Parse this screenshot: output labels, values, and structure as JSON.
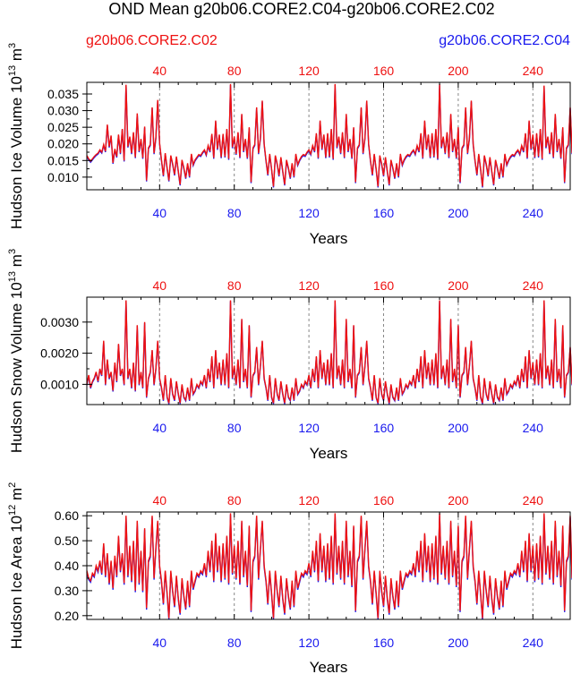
{
  "title": "OND Mean g20b06.CORE2.C04-g20b06.CORE2.C02",
  "legend": {
    "top_left": "g20b06.CORE2.C02",
    "top_right": "g20b06.CORE2.C04"
  },
  "colors": {
    "case_c02": "#ee1111",
    "case_c04": "#1a1aee",
    "axis": "#000000",
    "refline": "#888888"
  },
  "chart_data": [
    {
      "type": "line",
      "id": "ice-volume",
      "ylabel": "Hudson Ice Volume",
      "yunits": {
        "scale_base": "10",
        "scale_exp": "13",
        "unit": "m",
        "unit_exp": "3"
      },
      "xlabel": "Years",
      "xlim": [
        1,
        260
      ],
      "ylim": [
        0.0062,
        0.0385
      ],
      "yticks": [
        0.01,
        0.015,
        0.02,
        0.025,
        0.03,
        0.035
      ],
      "yticklabels": [
        "0.010",
        "0.015",
        "0.020",
        "0.025",
        "0.030",
        "0.035"
      ],
      "xticks_top": [
        "40",
        "80",
        "120",
        "160",
        "200",
        "240"
      ],
      "xticks_bottom": [
        "40",
        "80",
        "120",
        "160",
        "200",
        "240"
      ],
      "reference_lines_x": [
        40,
        80,
        120,
        160,
        200,
        240
      ],
      "series_note": "Two nearly identical OND-mean time series (C02 red, C04 blue), values estimated from figure",
      "series": [
        {
          "name": "g20b06.CORE2.C02",
          "values": [
            0.0165,
            0.0155,
            0.0148,
            0.0155,
            0.0162,
            0.0168,
            0.0172,
            0.0182,
            0.0175,
            0.0198,
            0.0178,
            0.0258,
            0.0192,
            0.0225,
            0.0143,
            0.0185,
            0.0162,
            0.0228,
            0.0172,
            0.0245,
            0.015,
            0.0378,
            0.0192,
            0.0222,
            0.0172,
            0.0235,
            0.016,
            0.0292,
            0.0178,
            0.0215,
            0.0158,
            0.0252,
            0.009,
            0.0188,
            0.0198,
            0.031,
            0.0172,
            0.0218,
            0.0332,
            0.0202,
            0.0152,
            0.0105,
            0.0172,
            0.0128,
            0.009,
            0.0165,
            0.014,
            0.0108,
            0.0162,
            0.0118,
            0.0078,
            0.0152,
            0.0128,
            0.0098,
            0.0142,
            0.0102,
            0.017,
            0.0138,
            0.0152,
            0.016,
            0.0168,
            0.0165,
            0.0175,
            0.0182,
            0.0168,
            0.0195,
            0.0178,
            0.023,
            0.0158,
            0.027,
            0.0185,
            0.0228,
            0.016,
            0.023,
            0.0162,
            0.0245,
            0.0155,
            0.038,
            0.019,
            0.0222,
            0.017,
            0.0235,
            0.016,
            0.029,
            0.0178,
            0.0215,
            0.0158,
            0.025,
            0.0085,
            0.0188,
            0.0198,
            0.031,
            0.0172,
            0.0218,
            0.033,
            0.02,
            0.015,
            0.0108,
            0.017,
            0.0125,
            0.0072,
            0.0165,
            0.014,
            0.0105,
            0.016,
            0.0118,
            0.0078,
            0.0152,
            0.0128,
            0.0098,
            0.0142,
            0.0102,
            0.017,
            0.0138,
            0.0152,
            0.0162,
            0.0168,
            0.0165,
            0.0175,
            0.0182,
            0.017,
            0.0195,
            0.0178,
            0.0232,
            0.0158,
            0.027,
            0.0185,
            0.0228,
            0.016,
            0.0232,
            0.0162,
            0.0245,
            0.0155,
            0.038,
            0.019,
            0.0222,
            0.0172,
            0.0235,
            0.016,
            0.029,
            0.0178,
            0.0215,
            0.0158,
            0.025,
            0.0085,
            0.0188,
            0.0198,
            0.031,
            0.0172,
            0.0218,
            0.033,
            0.02,
            0.015,
            0.0108,
            0.017,
            0.0125,
            0.0072,
            0.0165,
            0.014,
            0.0105,
            0.016,
            0.0118,
            0.0078,
            0.0152,
            0.0128,
            0.0098,
            0.0142,
            0.0102,
            0.017,
            0.0138,
            0.0152,
            0.0162,
            0.0168,
            0.0165,
            0.0175,
            0.0182,
            0.017,
            0.0195,
            0.0178,
            0.0232,
            0.0158,
            0.027,
            0.0185,
            0.0228,
            0.016,
            0.0232,
            0.0162,
            0.0245,
            0.0155,
            0.038,
            0.019,
            0.0222,
            0.0172,
            0.0235,
            0.016,
            0.029,
            0.0178,
            0.0215,
            0.0158,
            0.025,
            0.0085,
            0.0188,
            0.0198,
            0.031,
            0.0172,
            0.0218,
            0.033,
            0.02,
            0.015,
            0.0108,
            0.017,
            0.0125,
            0.0072,
            0.0165,
            0.014,
            0.0105,
            0.016,
            0.0118,
            0.0078,
            0.0152,
            0.0128,
            0.0098,
            0.0142,
            0.0102,
            0.017,
            0.0138,
            0.0152,
            0.0162,
            0.0168,
            0.0165,
            0.0175,
            0.0182,
            0.017,
            0.0195,
            0.0178,
            0.0232,
            0.0158,
            0.027,
            0.0185,
            0.0228,
            0.016,
            0.0232,
            0.0162,
            0.0245,
            0.0155,
            0.0375,
            0.019,
            0.0222,
            0.0172,
            0.0235,
            0.016,
            0.029,
            0.0178,
            0.0215,
            0.0158,
            0.025,
            0.0085,
            0.0188,
            0.0198,
            0.031,
            0.0172,
            0.0218,
            0.0195,
            0.0148,
            0.0178,
            0.012,
            0.019,
            0.016
          ]
        },
        {
          "name": "g20b06.CORE2.C04",
          "offset_from_c02": -0.0003
        }
      ]
    },
    {
      "type": "line",
      "id": "snow-volume",
      "ylabel": "Hudson Snow Volume",
      "yunits": {
        "scale_base": "10",
        "scale_exp": "13",
        "unit": "m",
        "unit_exp": "3"
      },
      "xlabel": "Years",
      "xlim": [
        1,
        260
      ],
      "ylim": [
        0.00035,
        0.0038
      ],
      "yticks": [
        0.001,
        0.002,
        0.003
      ],
      "yticklabels": [
        "0.0010",
        "0.0020",
        "0.0030"
      ],
      "xticks_top": [
        "40",
        "80",
        "120",
        "160",
        "200",
        "240"
      ],
      "xticks_bottom": [
        "40",
        "80",
        "120",
        "160",
        "200",
        "240"
      ],
      "reference_lines_x": [
        40,
        80,
        120,
        160,
        200,
        240
      ],
      "series": [
        {
          "name": "g20b06.CORE2.C02",
          "values": [
            0.001,
            0.0013,
            0.0009,
            0.0011,
            0.0012,
            0.0014,
            0.0011,
            0.0015,
            0.0013,
            0.0024,
            0.001,
            0.0018,
            0.0012,
            0.0014,
            0.0008,
            0.0017,
            0.0011,
            0.0023,
            0.0013,
            0.0015,
            0.001,
            0.0037,
            0.0012,
            0.0015,
            0.0009,
            0.0017,
            0.0008,
            0.0029,
            0.001,
            0.0014,
            0.0009,
            0.003,
            0.0006,
            0.0012,
            0.0014,
            0.0021,
            0.001,
            0.0015,
            0.0024,
            0.0012,
            0.0009,
            0.0005,
            0.0013,
            0.0006,
            0.0004,
            0.0012,
            0.0007,
            0.0005,
            0.0011,
            0.0007,
            0.0004,
            0.001,
            0.0006,
            0.0005,
            0.0009,
            0.0005,
            0.0012,
            0.0007,
            0.0008,
            0.001,
            0.0009,
            0.0011,
            0.001,
            0.0013,
            0.0009,
            0.0015,
            0.0011,
            0.0019,
            0.0009,
            0.0021,
            0.0012,
            0.0017,
            0.001,
            0.0018,
            0.001,
            0.002,
            0.0009,
            0.0037,
            0.0012,
            0.0016,
            0.001,
            0.0018,
            0.0009,
            0.0031,
            0.0011,
            0.0015,
            0.0009,
            0.0029,
            0.0006,
            0.0013,
            0.0014,
            0.0022,
            0.001,
            0.0016,
            0.0024,
            0.0012,
            0.0009,
            0.0005,
            0.0013,
            0.0006,
            0.0004,
            0.0012,
            0.0007,
            0.0005,
            0.0011,
            0.0007,
            0.0004,
            0.001,
            0.0006,
            0.0005,
            0.0009,
            0.0005,
            0.0012,
            0.0007,
            0.0008,
            0.001,
            0.0009,
            0.0011,
            0.001,
            0.0013,
            0.0009,
            0.0015,
            0.0011,
            0.0019,
            0.0009,
            0.0021,
            0.0012,
            0.0017,
            0.001,
            0.0018,
            0.001,
            0.002,
            0.0009,
            0.0037,
            0.0012,
            0.0016,
            0.001,
            0.0018,
            0.0009,
            0.0031,
            0.0011,
            0.0015,
            0.0009,
            0.0029,
            0.0006,
            0.0013,
            0.0014,
            0.0022,
            0.001,
            0.0016,
            0.0024,
            0.0012,
            0.0009,
            0.0005,
            0.0013,
            0.0006,
            0.0004,
            0.0012,
            0.0007,
            0.0005,
            0.0011,
            0.0007,
            0.0004,
            0.001,
            0.0006,
            0.0005,
            0.0009,
            0.0005,
            0.0012,
            0.0007,
            0.0008,
            0.001,
            0.0009,
            0.0011,
            0.001,
            0.0013,
            0.0009,
            0.0015,
            0.0011,
            0.0019,
            0.0009,
            0.0021,
            0.0012,
            0.0017,
            0.001,
            0.0018,
            0.001,
            0.002,
            0.0009,
            0.0037,
            0.0012,
            0.0016,
            0.001,
            0.0018,
            0.0009,
            0.0031,
            0.0011,
            0.0015,
            0.0009,
            0.0029,
            0.0006,
            0.0013,
            0.0014,
            0.0022,
            0.001,
            0.0016,
            0.0024,
            0.0012,
            0.0009,
            0.0005,
            0.0013,
            0.0006,
            0.0004,
            0.0012,
            0.0007,
            0.0005,
            0.0011,
            0.0007,
            0.0004,
            0.001,
            0.0006,
            0.0005,
            0.0009,
            0.0005,
            0.0012,
            0.0007,
            0.0008,
            0.001,
            0.0009,
            0.0011,
            0.001,
            0.0013,
            0.0009,
            0.0015,
            0.0011,
            0.0019,
            0.0009,
            0.0021,
            0.0012,
            0.0017,
            0.001,
            0.0018,
            0.001,
            0.002,
            0.0009,
            0.0037,
            0.0012,
            0.0016,
            0.001,
            0.0018,
            0.0009,
            0.0031,
            0.0011,
            0.0015,
            0.0009,
            0.0029,
            0.0006,
            0.0013,
            0.0014,
            0.0022,
            0.001,
            0.0016,
            0.0012,
            0.0007,
            0.0009,
            0.0005,
            0.0008,
            0.0005
          ]
        },
        {
          "name": "g20b06.CORE2.C04",
          "offset_from_c02": -3e-05
        }
      ]
    },
    {
      "type": "line",
      "id": "ice-area",
      "ylabel": "Hudson Ice Area",
      "yunits": {
        "scale_base": "10",
        "scale_exp": "12",
        "unit": "m",
        "unit_exp": "2"
      },
      "xlabel": "Years",
      "xlim": [
        1,
        260
      ],
      "ylim": [
        0.185,
        0.615
      ],
      "yticks": [
        0.2,
        0.3,
        0.4,
        0.5,
        0.6
      ],
      "yticklabels": [
        "0.20",
        "0.30",
        "0.40",
        "0.50",
        "0.60"
      ],
      "xticks_top": [
        "40",
        "80",
        "120",
        "160",
        "200",
        "240"
      ],
      "xticks_bottom": [
        "40",
        "80",
        "120",
        "160",
        "200",
        "240"
      ],
      "reference_lines_x": [
        40,
        80,
        120,
        160,
        200,
        240
      ],
      "series": [
        {
          "name": "g20b06.CORE2.C02",
          "values": [
            0.38,
            0.35,
            0.34,
            0.37,
            0.36,
            0.4,
            0.38,
            0.42,
            0.37,
            0.49,
            0.36,
            0.45,
            0.33,
            0.42,
            0.31,
            0.44,
            0.36,
            0.52,
            0.38,
            0.45,
            0.33,
            0.6,
            0.36,
            0.48,
            0.34,
            0.5,
            0.3,
            0.58,
            0.33,
            0.46,
            0.3,
            0.55,
            0.23,
            0.42,
            0.44,
            0.6,
            0.35,
            0.47,
            0.58,
            0.4,
            0.34,
            0.25,
            0.38,
            0.29,
            0.19,
            0.38,
            0.3,
            0.24,
            0.36,
            0.27,
            0.21,
            0.35,
            0.28,
            0.23,
            0.34,
            0.24,
            0.38,
            0.31,
            0.34,
            0.37,
            0.36,
            0.38,
            0.37,
            0.41,
            0.36,
            0.46,
            0.38,
            0.5,
            0.34,
            0.53,
            0.38,
            0.48,
            0.34,
            0.49,
            0.35,
            0.52,
            0.33,
            0.61,
            0.37,
            0.48,
            0.35,
            0.5,
            0.33,
            0.58,
            0.36,
            0.46,
            0.32,
            0.56,
            0.22,
            0.42,
            0.44,
            0.6,
            0.35,
            0.47,
            0.58,
            0.4,
            0.34,
            0.25,
            0.38,
            0.29,
            0.19,
            0.38,
            0.3,
            0.24,
            0.36,
            0.27,
            0.21,
            0.35,
            0.28,
            0.23,
            0.34,
            0.24,
            0.38,
            0.31,
            0.34,
            0.37,
            0.36,
            0.38,
            0.37,
            0.41,
            0.36,
            0.46,
            0.38,
            0.5,
            0.34,
            0.53,
            0.38,
            0.48,
            0.34,
            0.49,
            0.35,
            0.52,
            0.33,
            0.61,
            0.37,
            0.48,
            0.35,
            0.5,
            0.33,
            0.58,
            0.36,
            0.46,
            0.32,
            0.56,
            0.22,
            0.42,
            0.44,
            0.6,
            0.35,
            0.47,
            0.58,
            0.4,
            0.34,
            0.25,
            0.38,
            0.29,
            0.19,
            0.38,
            0.3,
            0.24,
            0.36,
            0.27,
            0.21,
            0.35,
            0.28,
            0.23,
            0.34,
            0.24,
            0.38,
            0.31,
            0.34,
            0.37,
            0.36,
            0.38,
            0.37,
            0.41,
            0.36,
            0.46,
            0.38,
            0.5,
            0.34,
            0.53,
            0.38,
            0.48,
            0.34,
            0.49,
            0.35,
            0.52,
            0.33,
            0.61,
            0.37,
            0.48,
            0.35,
            0.5,
            0.33,
            0.58,
            0.36,
            0.46,
            0.32,
            0.56,
            0.22,
            0.42,
            0.44,
            0.6,
            0.35,
            0.47,
            0.58,
            0.4,
            0.34,
            0.25,
            0.38,
            0.29,
            0.19,
            0.38,
            0.3,
            0.24,
            0.36,
            0.27,
            0.21,
            0.35,
            0.28,
            0.23,
            0.34,
            0.24,
            0.38,
            0.31,
            0.34,
            0.37,
            0.36,
            0.38,
            0.37,
            0.41,
            0.36,
            0.46,
            0.38,
            0.5,
            0.34,
            0.53,
            0.38,
            0.48,
            0.34,
            0.49,
            0.35,
            0.52,
            0.33,
            0.61,
            0.37,
            0.48,
            0.35,
            0.5,
            0.33,
            0.58,
            0.36,
            0.46,
            0.32,
            0.56,
            0.22,
            0.42,
            0.44,
            0.6,
            0.35,
            0.47,
            0.42,
            0.3,
            0.36,
            0.27,
            0.4,
            0.31
          ]
        },
        {
          "name": "g20b06.CORE2.C04",
          "offset_from_c02": -0.006
        }
      ]
    }
  ]
}
